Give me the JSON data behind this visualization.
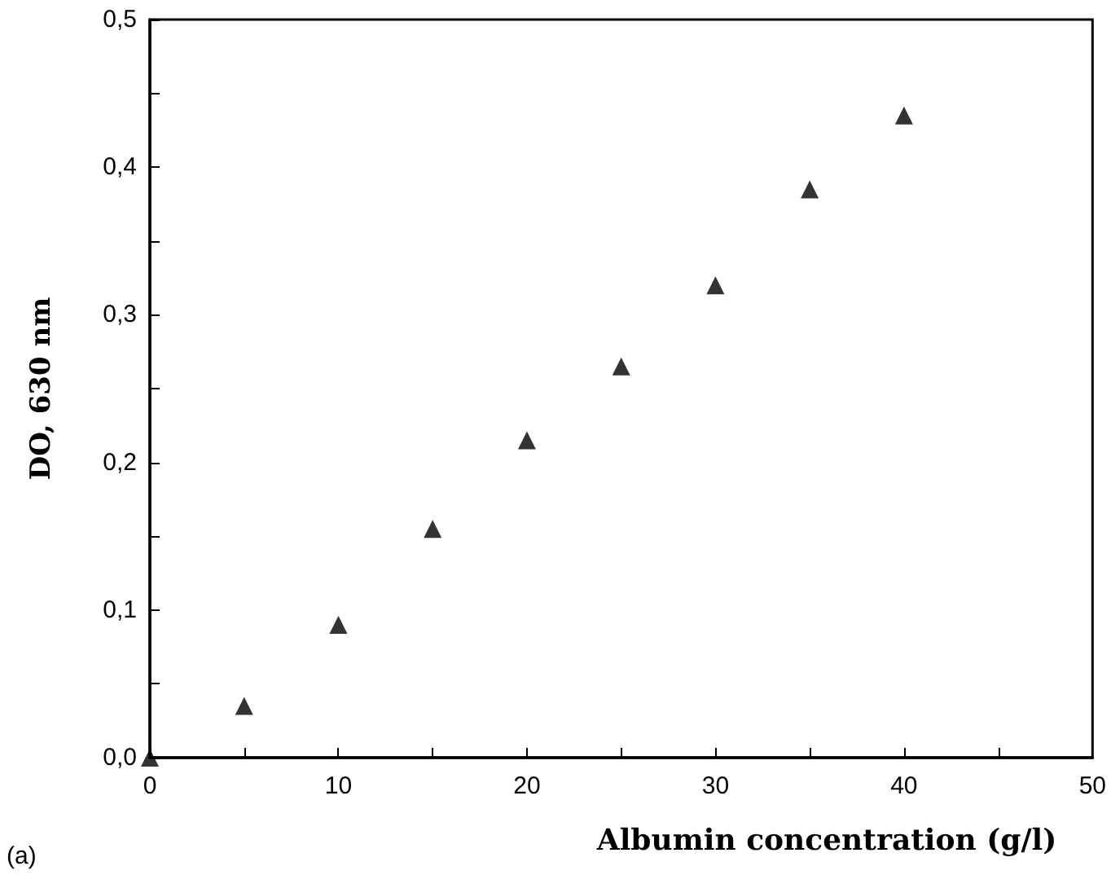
{
  "chart_data": {
    "type": "scatter",
    "xlabel": "Albumin concentration (g/l)",
    "ylabel": "DO, 630 nm",
    "annotations": [
      "(a)"
    ],
    "x": [
      0,
      5,
      10,
      15,
      20,
      25,
      30,
      35,
      40
    ],
    "series": [
      {
        "color": "#000000",
        "values": [
          0,
          0.035,
          0.09,
          0.155,
          0.215,
          0.265,
          0.32,
          0.385,
          0.435
        ]
      }
    ],
    "xlim": [
      0,
      50
    ],
    "xticks": [
      0,
      10,
      20,
      30,
      40,
      50
    ],
    "ylim": [
      0,
      0.5
    ],
    "yticks": [
      {
        "value": 0,
        "label": "0,0"
      },
      {
        "value": 0.1,
        "label": "0,1"
      },
      {
        "value": 0.2,
        "label": "0,2"
      },
      {
        "value": 0.3,
        "label": "0,3"
      },
      {
        "value": 0.4,
        "label": "0,4"
      },
      {
        "value": 0.5,
        "label": "0,5"
      }
    ],
    "grid": false,
    "marker": "triangle"
  }
}
